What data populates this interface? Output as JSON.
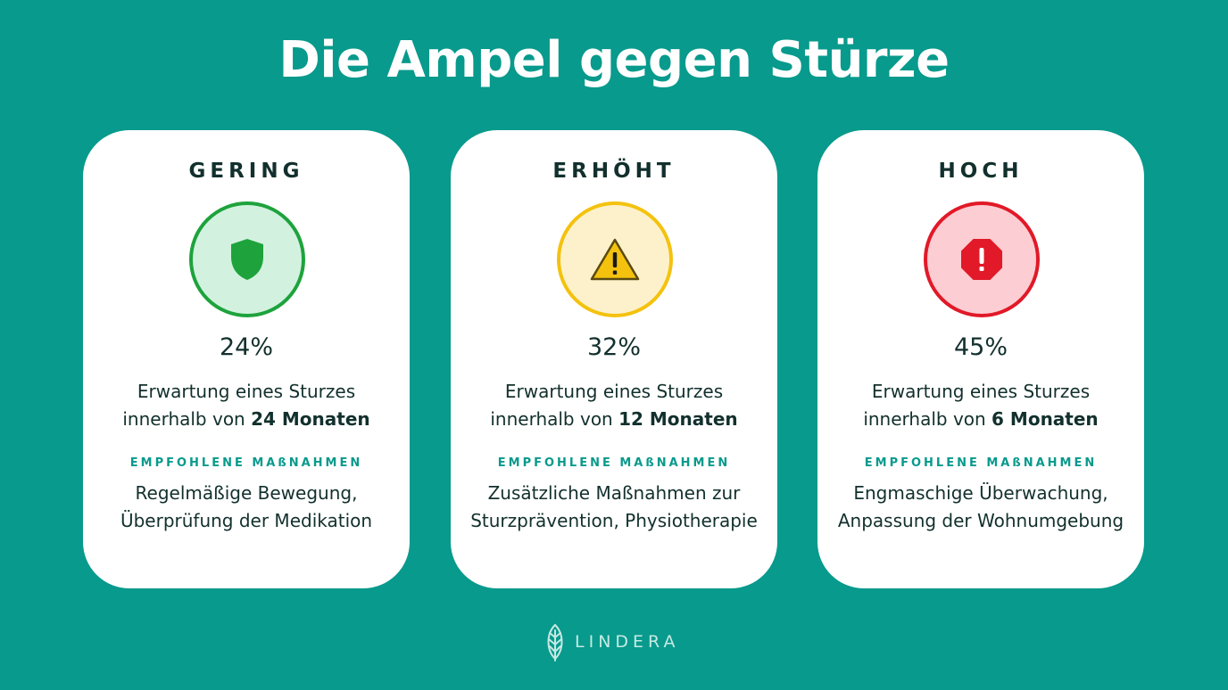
{
  "title": "Die Ampel gegen Stürze",
  "cards": [
    {
      "level": "GERING",
      "icon": "shield-icon",
      "color": "#1ea33c",
      "percent": "24%",
      "description_line1": "Erwartung eines Sturzes",
      "description_prefix": "innerhalb von",
      "description_bold": "24 Monaten",
      "measures_heading": "EMPFOHLENE MAßNAHMEN",
      "measures": "Regelmäßige Bewegung, Überprüfung der Medikation"
    },
    {
      "level": "ERHÖHT",
      "icon": "warning-triangle-icon",
      "color": "#f4c20e",
      "percent": "32%",
      "description_line1": "Erwartung eines Sturzes",
      "description_prefix": "innerhalb von",
      "description_bold": "12 Monaten",
      "measures_heading": "EMPFOHLENE MAßNAHMEN",
      "measures": "Zusätzliche Maßnahmen zur Sturzprävention, Physiotherapie"
    },
    {
      "level": "HOCH",
      "icon": "stop-octagon-icon",
      "color": "#e11928",
      "percent": "45%",
      "description_line1": "Erwartung eines Sturzes",
      "description_prefix": "innerhalb von",
      "description_bold": "6 Monaten",
      "measures_heading": "EMPFOHLENE MAßNAHMEN",
      "measures": "Engmaschige Überwachung, Anpassung der Wohnumgebung"
    }
  ],
  "logo": {
    "text": "LINDERA",
    "icon": "leaf-icon"
  },
  "colors": {
    "background": "#089a8c",
    "card": "#ffffff",
    "text": "#12302d",
    "accent": "#089a8c"
  }
}
